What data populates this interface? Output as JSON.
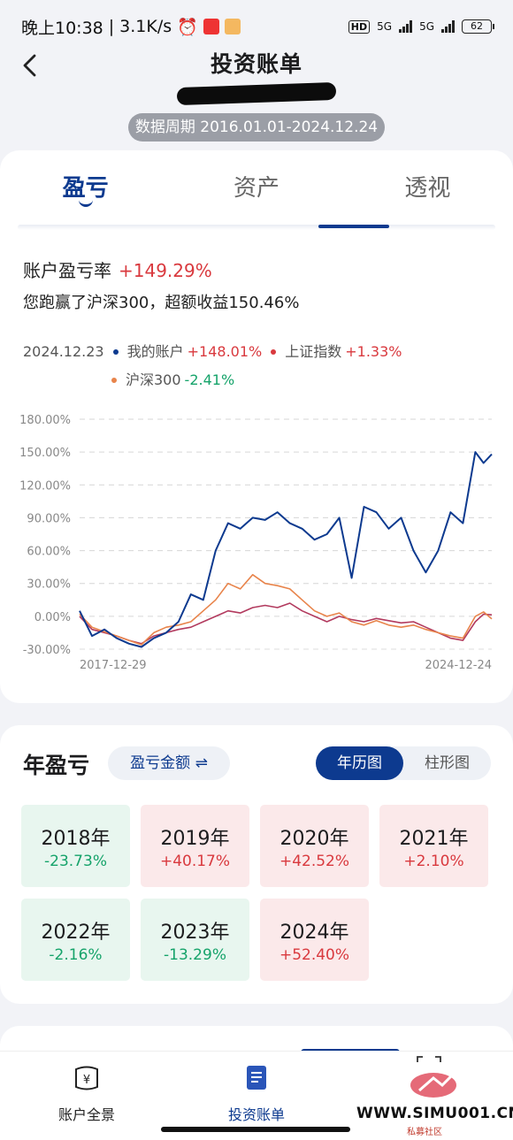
{
  "status_bar": {
    "time": "晚上10:38",
    "speed": "3.1K/s",
    "hd": "HD",
    "network": "5G",
    "battery": "62"
  },
  "header": {
    "title": "投资账单",
    "period": "数据周期 2016.01.01-2024.12.24"
  },
  "tabs": [
    "盈亏",
    "资产",
    "透视"
  ],
  "summary": {
    "rate_label": "账户盈亏率",
    "rate_value": "+149.29%",
    "beat_text": "您跑赢了沪深300，超额收益150.46%"
  },
  "legend": {
    "date": "2024.12.23",
    "items": [
      {
        "name": "我的账户",
        "value": "+148.01%"
      },
      {
        "name": "上证指数",
        "value": "+1.33%"
      },
      {
        "name": "沪深300",
        "value": "-2.41%"
      }
    ]
  },
  "colors": {
    "accent": "#0d3a8f",
    "positive": "#d9393e",
    "negative": "#15a36a",
    "series_account": "#0d3a8f",
    "series_sse": "#b23a5e",
    "series_csi300": "#e8844b"
  },
  "chart_data": {
    "type": "line",
    "ylim": [
      -30,
      180
    ],
    "yticks": [
      "180.00%",
      "150.00%",
      "120.00%",
      "90.00%",
      "60.00%",
      "30.00%",
      "0.00%",
      "-30.00%"
    ],
    "x_start_label": "2017-12-29",
    "x_end_label": "2024-12-24",
    "grid": true,
    "x": [
      0,
      0.03,
      0.06,
      0.09,
      0.12,
      0.15,
      0.18,
      0.21,
      0.24,
      0.27,
      0.3,
      0.33,
      0.36,
      0.39,
      0.42,
      0.45,
      0.48,
      0.51,
      0.54,
      0.57,
      0.6,
      0.63,
      0.66,
      0.69,
      0.72,
      0.75,
      0.78,
      0.81,
      0.84,
      0.87,
      0.9,
      0.93,
      0.96,
      0.98,
      1.0
    ],
    "series": [
      {
        "name": "我的账户",
        "values": [
          5,
          -18,
          -12,
          -20,
          -25,
          -28,
          -20,
          -15,
          -5,
          20,
          15,
          60,
          85,
          80,
          90,
          88,
          95,
          85,
          80,
          70,
          75,
          90,
          35,
          100,
          95,
          80,
          90,
          60,
          40,
          60,
          95,
          85,
          150,
          140,
          148
        ]
      },
      {
        "name": "上证指数",
        "values": [
          0,
          -12,
          -15,
          -18,
          -22,
          -25,
          -18,
          -15,
          -12,
          -10,
          -5,
          0,
          5,
          3,
          8,
          10,
          8,
          12,
          5,
          0,
          -5,
          0,
          -3,
          -5,
          -2,
          -4,
          -6,
          -5,
          -10,
          -15,
          -20,
          -22,
          -5,
          2,
          1.33
        ]
      },
      {
        "name": "沪深300",
        "values": [
          2,
          -10,
          -14,
          -18,
          -22,
          -26,
          -15,
          -10,
          -8,
          -5,
          5,
          15,
          30,
          25,
          38,
          30,
          28,
          25,
          15,
          5,
          0,
          3,
          -5,
          -8,
          -4,
          -8,
          -10,
          -8,
          -12,
          -15,
          -18,
          -20,
          0,
          4,
          -2.41
        ]
      }
    ]
  },
  "yearly": {
    "title": "年盈亏",
    "metric": "盈亏金额 ⇌",
    "seg": [
      "年历图",
      "柱形图"
    ],
    "cells": [
      {
        "year": "2018年",
        "pct": "-23.73%",
        "dir": "down"
      },
      {
        "year": "2019年",
        "pct": "+40.17%",
        "dir": "up"
      },
      {
        "year": "2020年",
        "pct": "+42.52%",
        "dir": "up"
      },
      {
        "year": "2021年",
        "pct": "+2.10%",
        "dir": "up"
      },
      {
        "year": "2022年",
        "pct": "-2.16%",
        "dir": "down"
      },
      {
        "year": "2023年",
        "pct": "-13.29%",
        "dir": "down"
      },
      {
        "year": "2024年",
        "pct": "+52.40%",
        "dir": "up"
      }
    ]
  },
  "bottom_nav": [
    {
      "label": "账户全景",
      "icon": "wallet-icon"
    },
    {
      "label": "投资账单",
      "icon": "bill-icon"
    }
  ],
  "watermark": {
    "text": "WWW.SIMU001.CN",
    "sub": "私募社区"
  }
}
